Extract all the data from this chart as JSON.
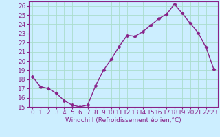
{
  "x": [
    0,
    1,
    2,
    3,
    4,
    5,
    6,
    7,
    8,
    9,
    10,
    11,
    12,
    13,
    14,
    15,
    16,
    17,
    18,
    19,
    20,
    21,
    22,
    23
  ],
  "y": [
    18.3,
    17.2,
    17.0,
    16.5,
    15.7,
    15.2,
    15.0,
    15.2,
    17.3,
    19.0,
    20.2,
    21.6,
    22.8,
    22.7,
    23.2,
    23.9,
    24.6,
    25.1,
    26.2,
    25.2,
    24.1,
    23.1,
    21.5,
    19.1
  ],
  "line_color": "#882288",
  "marker": "D",
  "marker_size": 2.5,
  "background_color": "#cceeff",
  "grid_color": "#aaddcc",
  "xlabel": "Windchill (Refroidissement éolien,°C)",
  "ylim": [
    15,
    26.5
  ],
  "xlim": [
    -0.5,
    23.5
  ],
  "yticks": [
    15,
    16,
    17,
    18,
    19,
    20,
    21,
    22,
    23,
    24,
    25,
    26
  ],
  "xticks": [
    0,
    1,
    2,
    3,
    4,
    5,
    6,
    7,
    8,
    9,
    10,
    11,
    12,
    13,
    14,
    15,
    16,
    17,
    18,
    19,
    20,
    21,
    22,
    23
  ],
  "xlabel_fontsize": 6.5,
  "tick_fontsize": 6.5,
  "line_width": 1.0,
  "spine_color": "#882288"
}
